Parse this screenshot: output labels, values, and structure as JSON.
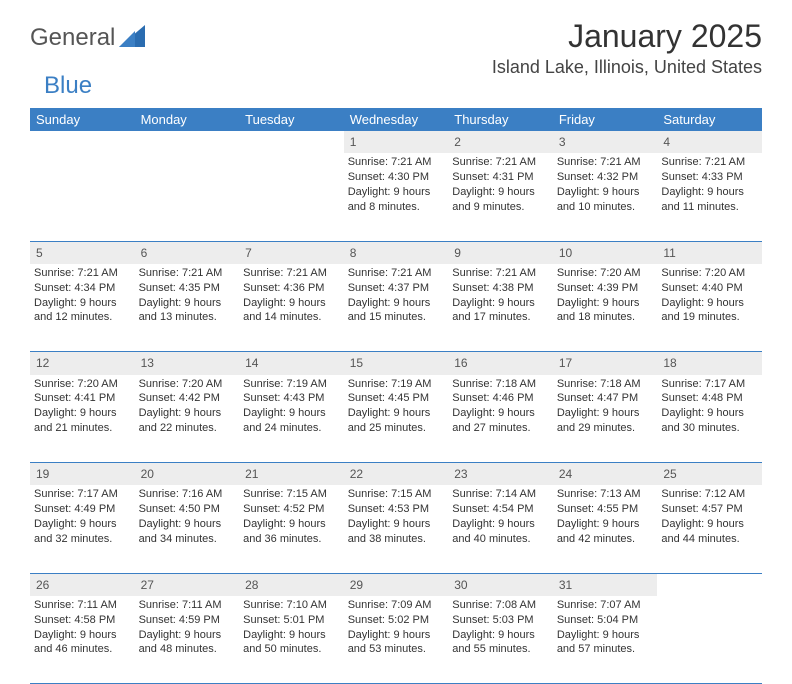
{
  "brand": {
    "general": "General",
    "blue": "Blue"
  },
  "title": "January 2025",
  "location": "Island Lake, Illinois, United States",
  "colors": {
    "header_bg": "#3b7fc4",
    "header_text": "#ffffff",
    "daynum_bg": "#ededed",
    "border": "#3b7fc4",
    "text": "#333333"
  },
  "weekdays": [
    "Sunday",
    "Monday",
    "Tuesday",
    "Wednesday",
    "Thursday",
    "Friday",
    "Saturday"
  ],
  "weeks": [
    {
      "nums": [
        "",
        "",
        "",
        "1",
        "2",
        "3",
        "4"
      ],
      "cells": [
        null,
        null,
        null,
        {
          "sunrise": "Sunrise: 7:21 AM",
          "sunset": "Sunset: 4:30 PM",
          "dl1": "Daylight: 9 hours",
          "dl2": "and 8 minutes."
        },
        {
          "sunrise": "Sunrise: 7:21 AM",
          "sunset": "Sunset: 4:31 PM",
          "dl1": "Daylight: 9 hours",
          "dl2": "and 9 minutes."
        },
        {
          "sunrise": "Sunrise: 7:21 AM",
          "sunset": "Sunset: 4:32 PM",
          "dl1": "Daylight: 9 hours",
          "dl2": "and 10 minutes."
        },
        {
          "sunrise": "Sunrise: 7:21 AM",
          "sunset": "Sunset: 4:33 PM",
          "dl1": "Daylight: 9 hours",
          "dl2": "and 11 minutes."
        }
      ]
    },
    {
      "nums": [
        "5",
        "6",
        "7",
        "8",
        "9",
        "10",
        "11"
      ],
      "cells": [
        {
          "sunrise": "Sunrise: 7:21 AM",
          "sunset": "Sunset: 4:34 PM",
          "dl1": "Daylight: 9 hours",
          "dl2": "and 12 minutes."
        },
        {
          "sunrise": "Sunrise: 7:21 AM",
          "sunset": "Sunset: 4:35 PM",
          "dl1": "Daylight: 9 hours",
          "dl2": "and 13 minutes."
        },
        {
          "sunrise": "Sunrise: 7:21 AM",
          "sunset": "Sunset: 4:36 PM",
          "dl1": "Daylight: 9 hours",
          "dl2": "and 14 minutes."
        },
        {
          "sunrise": "Sunrise: 7:21 AM",
          "sunset": "Sunset: 4:37 PM",
          "dl1": "Daylight: 9 hours",
          "dl2": "and 15 minutes."
        },
        {
          "sunrise": "Sunrise: 7:21 AM",
          "sunset": "Sunset: 4:38 PM",
          "dl1": "Daylight: 9 hours",
          "dl2": "and 17 minutes."
        },
        {
          "sunrise": "Sunrise: 7:20 AM",
          "sunset": "Sunset: 4:39 PM",
          "dl1": "Daylight: 9 hours",
          "dl2": "and 18 minutes."
        },
        {
          "sunrise": "Sunrise: 7:20 AM",
          "sunset": "Sunset: 4:40 PM",
          "dl1": "Daylight: 9 hours",
          "dl2": "and 19 minutes."
        }
      ]
    },
    {
      "nums": [
        "12",
        "13",
        "14",
        "15",
        "16",
        "17",
        "18"
      ],
      "cells": [
        {
          "sunrise": "Sunrise: 7:20 AM",
          "sunset": "Sunset: 4:41 PM",
          "dl1": "Daylight: 9 hours",
          "dl2": "and 21 minutes."
        },
        {
          "sunrise": "Sunrise: 7:20 AM",
          "sunset": "Sunset: 4:42 PM",
          "dl1": "Daylight: 9 hours",
          "dl2": "and 22 minutes."
        },
        {
          "sunrise": "Sunrise: 7:19 AM",
          "sunset": "Sunset: 4:43 PM",
          "dl1": "Daylight: 9 hours",
          "dl2": "and 24 minutes."
        },
        {
          "sunrise": "Sunrise: 7:19 AM",
          "sunset": "Sunset: 4:45 PM",
          "dl1": "Daylight: 9 hours",
          "dl2": "and 25 minutes."
        },
        {
          "sunrise": "Sunrise: 7:18 AM",
          "sunset": "Sunset: 4:46 PM",
          "dl1": "Daylight: 9 hours",
          "dl2": "and 27 minutes."
        },
        {
          "sunrise": "Sunrise: 7:18 AM",
          "sunset": "Sunset: 4:47 PM",
          "dl1": "Daylight: 9 hours",
          "dl2": "and 29 minutes."
        },
        {
          "sunrise": "Sunrise: 7:17 AM",
          "sunset": "Sunset: 4:48 PM",
          "dl1": "Daylight: 9 hours",
          "dl2": "and 30 minutes."
        }
      ]
    },
    {
      "nums": [
        "19",
        "20",
        "21",
        "22",
        "23",
        "24",
        "25"
      ],
      "cells": [
        {
          "sunrise": "Sunrise: 7:17 AM",
          "sunset": "Sunset: 4:49 PM",
          "dl1": "Daylight: 9 hours",
          "dl2": "and 32 minutes."
        },
        {
          "sunrise": "Sunrise: 7:16 AM",
          "sunset": "Sunset: 4:50 PM",
          "dl1": "Daylight: 9 hours",
          "dl2": "and 34 minutes."
        },
        {
          "sunrise": "Sunrise: 7:15 AM",
          "sunset": "Sunset: 4:52 PM",
          "dl1": "Daylight: 9 hours",
          "dl2": "and 36 minutes."
        },
        {
          "sunrise": "Sunrise: 7:15 AM",
          "sunset": "Sunset: 4:53 PM",
          "dl1": "Daylight: 9 hours",
          "dl2": "and 38 minutes."
        },
        {
          "sunrise": "Sunrise: 7:14 AM",
          "sunset": "Sunset: 4:54 PM",
          "dl1": "Daylight: 9 hours",
          "dl2": "and 40 minutes."
        },
        {
          "sunrise": "Sunrise: 7:13 AM",
          "sunset": "Sunset: 4:55 PM",
          "dl1": "Daylight: 9 hours",
          "dl2": "and 42 minutes."
        },
        {
          "sunrise": "Sunrise: 7:12 AM",
          "sunset": "Sunset: 4:57 PM",
          "dl1": "Daylight: 9 hours",
          "dl2": "and 44 minutes."
        }
      ]
    },
    {
      "nums": [
        "26",
        "27",
        "28",
        "29",
        "30",
        "31",
        ""
      ],
      "cells": [
        {
          "sunrise": "Sunrise: 7:11 AM",
          "sunset": "Sunset: 4:58 PM",
          "dl1": "Daylight: 9 hours",
          "dl2": "and 46 minutes."
        },
        {
          "sunrise": "Sunrise: 7:11 AM",
          "sunset": "Sunset: 4:59 PM",
          "dl1": "Daylight: 9 hours",
          "dl2": "and 48 minutes."
        },
        {
          "sunrise": "Sunrise: 7:10 AM",
          "sunset": "Sunset: 5:01 PM",
          "dl1": "Daylight: 9 hours",
          "dl2": "and 50 minutes."
        },
        {
          "sunrise": "Sunrise: 7:09 AM",
          "sunset": "Sunset: 5:02 PM",
          "dl1": "Daylight: 9 hours",
          "dl2": "and 53 minutes."
        },
        {
          "sunrise": "Sunrise: 7:08 AM",
          "sunset": "Sunset: 5:03 PM",
          "dl1": "Daylight: 9 hours",
          "dl2": "and 55 minutes."
        },
        {
          "sunrise": "Sunrise: 7:07 AM",
          "sunset": "Sunset: 5:04 PM",
          "dl1": "Daylight: 9 hours",
          "dl2": "and 57 minutes."
        },
        null
      ]
    }
  ]
}
